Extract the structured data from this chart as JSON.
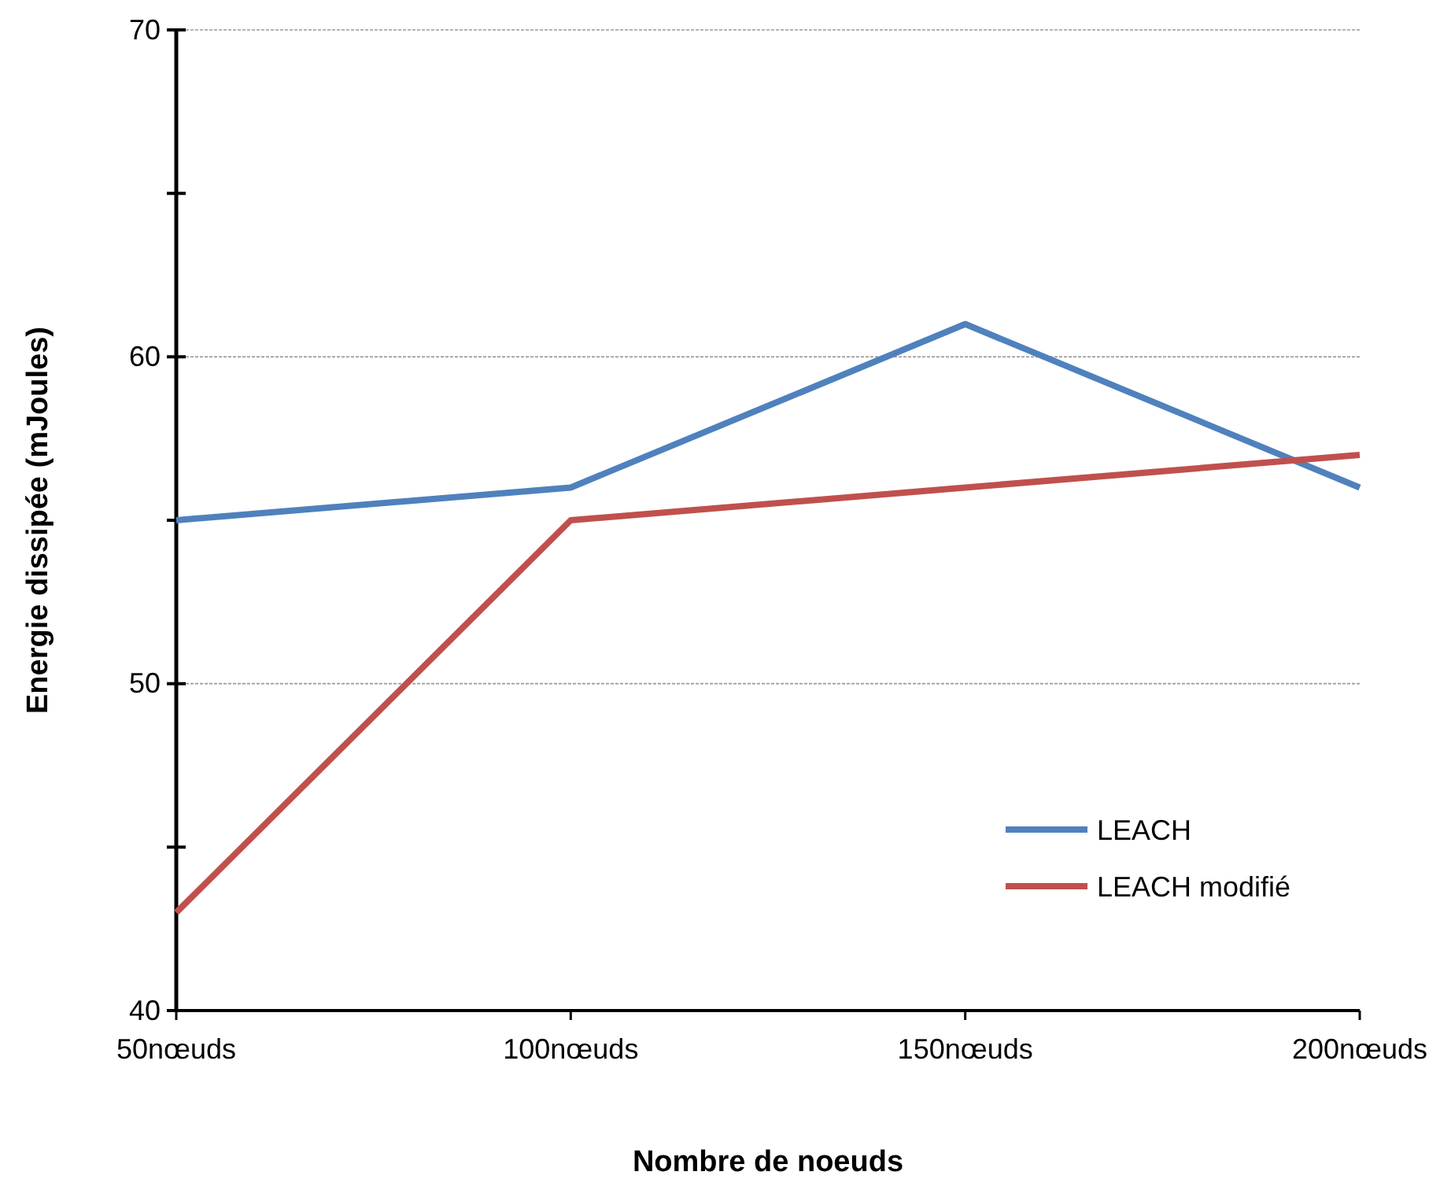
{
  "chart_data": {
    "type": "line",
    "xlabel": "Nombre de noeuds",
    "ylabel": "Energie dissipée (mJoules)",
    "categories": [
      "50nœuds",
      "100nœuds",
      "150nœuds",
      "200nœuds"
    ],
    "series": [
      {
        "name": "LEACH",
        "color": "#4f81bd",
        "values": [
          55,
          56,
          61,
          56
        ]
      },
      {
        "name": "LEACH modifié",
        "color": "#c0504d",
        "values": [
          43,
          55,
          56,
          57
        ]
      }
    ],
    "ylim": [
      40,
      70
    ],
    "yticks": [
      40,
      {
        "value": 45,
        "label": null
      },
      50,
      {
        "value": 55,
        "label": null
      },
      60,
      {
        "value": 65,
        "label": null
      },
      70
    ],
    "grid": "y",
    "legend": "bottom right",
    "marker": "none",
    "line_style": "solid"
  }
}
